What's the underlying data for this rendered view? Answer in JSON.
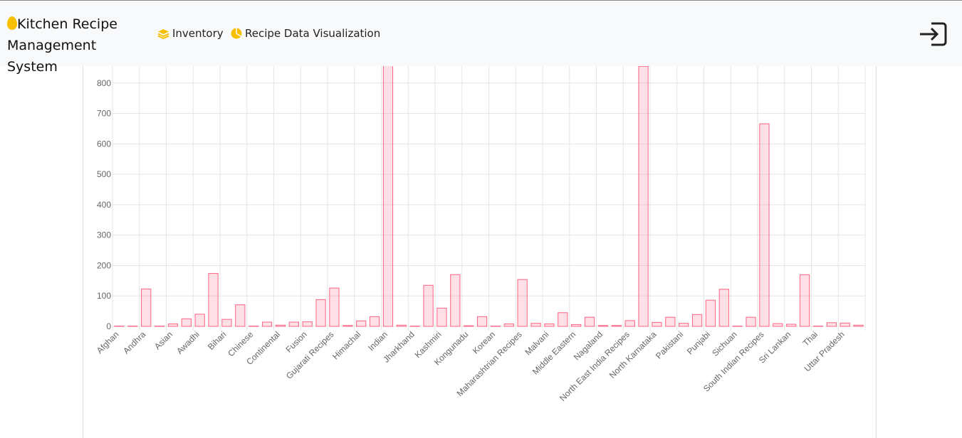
{
  "header": {
    "brand": "Kitchen Recipe Management System",
    "nav": [
      "Inventory",
      "Recipe Data Visualization"
    ]
  },
  "chart_data": {
    "type": "bar",
    "categories": [
      "Afghan",
      null,
      "Andhra",
      null,
      "Asian",
      null,
      "Awadhi",
      null,
      "Bihari",
      null,
      "Chinese",
      null,
      "Continental",
      null,
      "Fusion",
      null,
      "Gujarati Recipes",
      null,
      "Himachal",
      null,
      "Indian",
      null,
      "Jharkhand",
      null,
      "Kashmiri",
      null,
      "Kongunadu",
      null,
      "Korean",
      null,
      "Maharashtrian Recipes",
      null,
      "Malvani",
      null,
      "Middle Eastern",
      null,
      "Nagaland",
      null,
      "North East India Recipes",
      null,
      "North Karnataka",
      null,
      "Pakistani",
      null,
      "Punjabi",
      null,
      "Sichuan",
      null,
      "South Indian Recipes",
      null,
      "Sri Lankan",
      null,
      "Thai",
      null,
      "Uttar Pradesh",
      null
    ],
    "values": [
      1,
      1,
      123,
      1,
      8,
      25,
      40,
      174,
      23,
      71,
      1,
      14,
      4,
      14,
      15,
      88,
      126,
      3,
      18,
      32,
      890,
      4,
      1,
      135,
      60,
      170,
      2,
      32,
      1,
      8,
      154,
      10,
      8,
      45,
      6,
      30,
      3,
      3,
      19,
      855,
      13,
      30,
      10,
      39,
      86,
      122,
      1,
      30,
      666,
      9,
      7,
      170,
      1,
      12,
      11,
      4
    ],
    "color": "#ff6384",
    "ylim": [
      0,
      900
    ],
    "yticks": [
      0,
      100,
      200,
      300,
      400,
      500,
      600,
      700,
      800
    ],
    "grid": true
  }
}
